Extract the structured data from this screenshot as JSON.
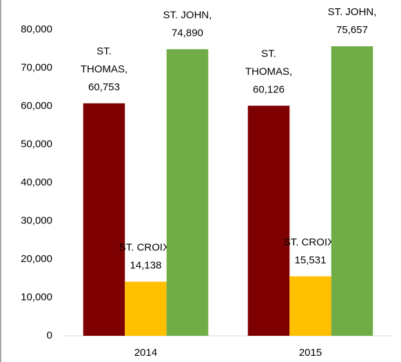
{
  "chart_data": {
    "type": "bar",
    "categories": [
      "2014",
      "2015"
    ],
    "series": [
      {
        "name": "ST. THOMAS",
        "color": "#7f0000",
        "values": [
          60753,
          60126
        ],
        "value_labels": [
          "ST. THOMAS, 60,753",
          "ST. THOMAS, 60,126"
        ]
      },
      {
        "name": "ST. CROIX",
        "color": "#ffc000",
        "values": [
          14138,
          15531
        ],
        "value_labels": [
          "ST. CROIX, 14,138",
          "ST. CROIX, 15,531"
        ]
      },
      {
        "name": "ST. JOHN",
        "color": "#70ad47",
        "values": [
          74890,
          75657
        ],
        "value_labels": [
          "ST. JOHN, 74,890",
          "ST. JOHN, 75,657"
        ]
      }
    ],
    "ylim": [
      0,
      80000
    ],
    "yticks": [
      {
        "value": 0,
        "label": "0"
      },
      {
        "value": 10000,
        "label": "10,000"
      },
      {
        "value": 20000,
        "label": "20,000"
      },
      {
        "value": 30000,
        "label": "30,000"
      },
      {
        "value": 40000,
        "label": "40,000"
      },
      {
        "value": 50000,
        "label": "50,000"
      },
      {
        "value": 60000,
        "label": "60,000"
      },
      {
        "value": 70000,
        "label": "70,000"
      },
      {
        "value": 80000,
        "label": "80,000"
      }
    ],
    "grid": false
  }
}
